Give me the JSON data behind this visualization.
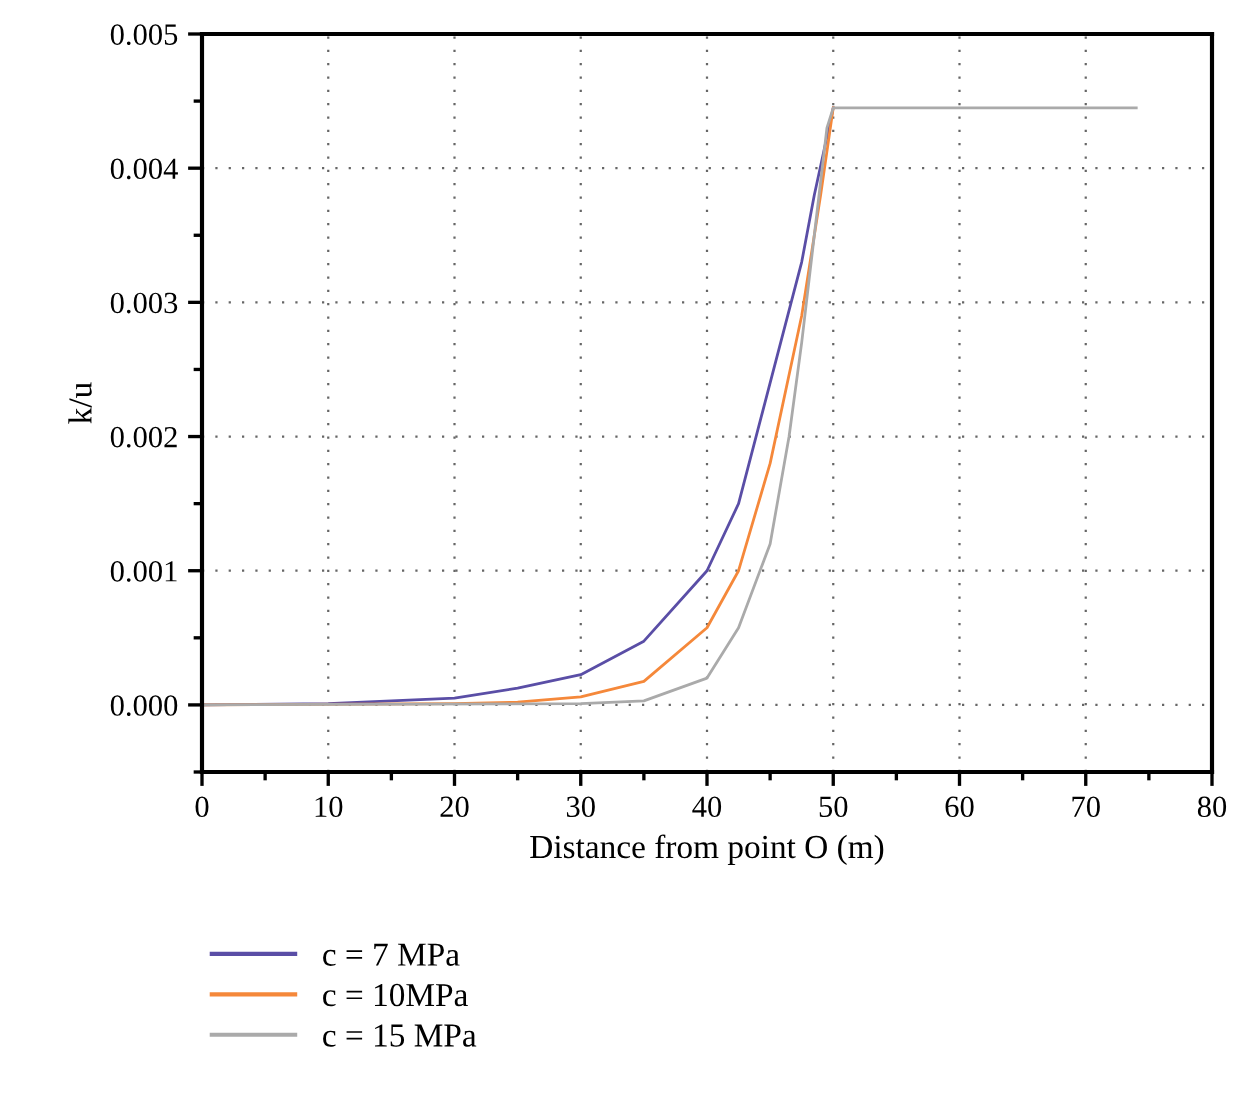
{
  "chart_data": {
    "type": "line",
    "xlabel": "Distance from point O (m)",
    "ylabel": "k/u",
    "xlim": [
      0,
      80
    ],
    "xticks": [
      0,
      10,
      20,
      30,
      40,
      50,
      60,
      70,
      80
    ],
    "ylim": [
      -0.0005,
      0.005
    ],
    "yticks": [
      {
        "value": 0,
        "label": "0.000"
      },
      {
        "value": 0.001,
        "label": "0.001"
      },
      {
        "value": 0.002,
        "label": "0.002"
      },
      {
        "value": 0.003,
        "label": "0.003"
      },
      {
        "value": 0.004,
        "label": "0.004"
      },
      {
        "value": 0.005,
        "label": "0.005"
      }
    ],
    "grid": true,
    "legend": "bottom",
    "line_style": "solid",
    "marker": "none",
    "series": [
      {
        "name": "c = 7 MPa",
        "color": "#5a4ea6",
        "x": [
          0,
          10,
          20,
          25,
          30,
          35,
          40,
          42.5,
          45,
          47.5,
          48.5,
          50
        ],
        "values": [
          0,
          1e-05,
          5e-05,
          0.000125,
          0.000225,
          0.000475,
          0.001,
          0.0015,
          0.0024,
          0.0033,
          0.0038,
          0.00445
        ]
      },
      {
        "name": "c = 10MPa",
        "color": "#f5883a",
        "x": [
          0,
          20,
          25,
          30,
          35,
          40,
          42.5,
          45,
          47.5,
          49,
          50
        ],
        "values": [
          0,
          1e-05,
          2e-05,
          6e-05,
          0.000175,
          0.000575,
          0.001,
          0.0018,
          0.0029,
          0.0038,
          0.00445
        ]
      },
      {
        "name": "c = 15 MPa",
        "color": "#aaaaaa",
        "x": [
          0,
          30,
          35,
          40,
          42.5,
          45,
          46.5,
          47.5,
          48.5,
          49.5,
          50,
          74
        ],
        "values": [
          0,
          1e-05,
          3e-05,
          0.0002,
          0.000575,
          0.0012,
          0.002,
          0.0027,
          0.0035,
          0.0043,
          0.00445,
          0.00445
        ]
      }
    ]
  }
}
